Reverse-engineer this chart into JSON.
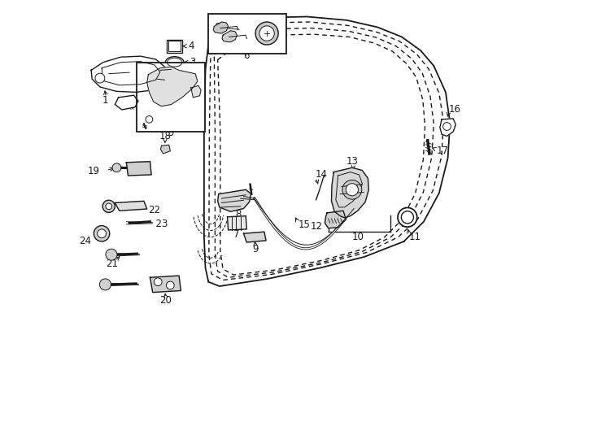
{
  "bg_color": "#ffffff",
  "line_color": "#1a1a1a",
  "fig_width": 7.34,
  "fig_height": 5.4,
  "dpi": 100,
  "door_outer": {
    "x": [
      0.42,
      0.5,
      0.6,
      0.68,
      0.74,
      0.79,
      0.82,
      0.84,
      0.845,
      0.84,
      0.82,
      0.78,
      0.72,
      0.64,
      0.55,
      0.44,
      0.34,
      0.29,
      0.285,
      0.29,
      0.31,
      0.39,
      0.42
    ],
    "y": [
      0.97,
      0.98,
      0.975,
      0.96,
      0.94,
      0.9,
      0.85,
      0.78,
      0.7,
      0.61,
      0.54,
      0.48,
      0.44,
      0.41,
      0.395,
      0.37,
      0.36,
      0.38,
      0.5,
      0.76,
      0.88,
      0.96,
      0.97
    ]
  },
  "door_inner1": {
    "x": [
      0.415,
      0.5,
      0.6,
      0.675,
      0.728,
      0.768,
      0.796,
      0.815,
      0.82,
      0.815,
      0.796,
      0.76,
      0.705,
      0.63,
      0.548,
      0.44,
      0.345,
      0.302,
      0.298,
      0.303,
      0.318,
      0.392,
      0.415
    ],
    "y": [
      0.956,
      0.966,
      0.96,
      0.946,
      0.926,
      0.887,
      0.838,
      0.77,
      0.695,
      0.608,
      0.54,
      0.483,
      0.446,
      0.417,
      0.402,
      0.378,
      0.368,
      0.388,
      0.503,
      0.757,
      0.873,
      0.948,
      0.956
    ]
  },
  "door_inner2": {
    "x": [
      0.41,
      0.5,
      0.598,
      0.668,
      0.716,
      0.754,
      0.78,
      0.797,
      0.802,
      0.797,
      0.78,
      0.745,
      0.693,
      0.622,
      0.545,
      0.44,
      0.35,
      0.314,
      0.311,
      0.316,
      0.326,
      0.395,
      0.41
    ],
    "y": [
      0.943,
      0.952,
      0.946,
      0.932,
      0.913,
      0.875,
      0.827,
      0.76,
      0.688,
      0.604,
      0.537,
      0.483,
      0.448,
      0.422,
      0.408,
      0.385,
      0.376,
      0.395,
      0.506,
      0.754,
      0.866,
      0.936,
      0.943
    ]
  },
  "door_solid_left": {
    "x": [
      0.285,
      0.285,
      0.29,
      0.31,
      0.39,
      0.42
    ],
    "y": [
      0.5,
      0.76,
      0.88,
      0.96,
      0.97,
      0.98
    ]
  },
  "door_solid_right": {
    "x": [
      0.84,
      0.845,
      0.84,
      0.82,
      0.78
    ],
    "y": [
      0.78,
      0.7,
      0.61,
      0.54,
      0.48
    ]
  },
  "door_solid_bottom": {
    "x": [
      0.285,
      0.29,
      0.34,
      0.44,
      0.55,
      0.64,
      0.72
    ],
    "y": [
      0.5,
      0.38,
      0.36,
      0.37,
      0.395,
      0.41,
      0.44
    ]
  }
}
